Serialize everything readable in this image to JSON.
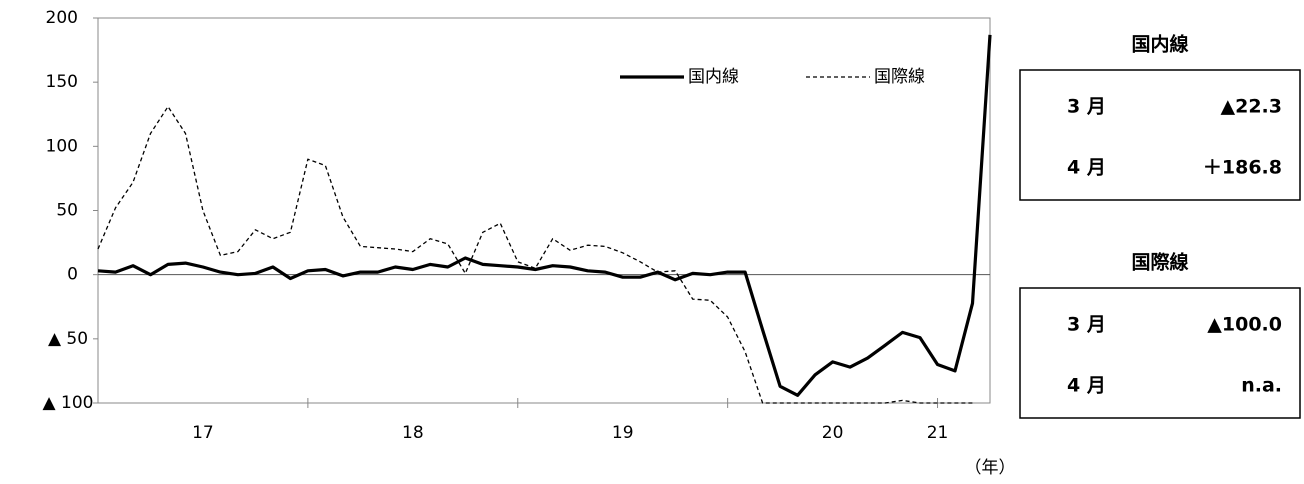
{
  "chart_data": {
    "type": "line",
    "categories": [
      null,
      null,
      null,
      null,
      null,
      null,
      "17",
      null,
      null,
      null,
      null,
      null,
      null,
      null,
      null,
      null,
      null,
      null,
      "18",
      null,
      null,
      null,
      null,
      null,
      null,
      null,
      null,
      null,
      null,
      null,
      "19",
      null,
      null,
      null,
      null,
      null,
      null,
      null,
      null,
      null,
      null,
      null,
      "20",
      null,
      null,
      null,
      null,
      null,
      "21",
      null,
      null,
      null
    ],
    "x_unit_label": "（年）",
    "series": [
      {
        "name": "国内線",
        "color": "#000000",
        "dash": false,
        "values": [
          3,
          2,
          7,
          0,
          8,
          9,
          6,
          2,
          0,
          1,
          6,
          -3,
          3,
          4,
          -1,
          2,
          2,
          6,
          4,
          8,
          6,
          13,
          8,
          7,
          6,
          4,
          7,
          6,
          3,
          2,
          -2,
          -2,
          2,
          -4,
          1,
          0,
          2,
          2,
          -43,
          -87,
          -94,
          -78,
          -68,
          -72,
          -65,
          -55,
          -45,
          -49,
          -70,
          -75,
          -22.3,
          186.8
        ]
      },
      {
        "name": "国際線",
        "color": "#000000",
        "dash": true,
        "values": [
          20,
          52,
          72,
          110,
          131,
          110,
          50,
          15,
          18,
          35,
          28,
          33,
          90,
          85,
          45,
          22,
          21,
          20,
          18,
          28,
          24,
          1,
          33,
          40,
          10,
          5,
          28,
          19,
          23,
          22,
          17,
          10,
          2,
          3,
          -19,
          -20,
          -33,
          -60,
          -100,
          -100,
          -100,
          -100,
          -100,
          -100,
          -100,
          -100,
          -98,
          -100,
          -100,
          -100,
          -100,
          null
        ]
      }
    ],
    "ylim": [
      -100,
      200
    ],
    "yticks": [
      {
        "value": -100,
        "label": "▲ 100"
      },
      {
        "value": -50,
        "label": "▲ 50"
      },
      0,
      50,
      100,
      150,
      200
    ],
    "legend": "upper right"
  },
  "panels": [
    {
      "title": "国内線",
      "rows": [
        {
          "month": "3 月",
          "value": "▲22.3"
        },
        {
          "month": "4 月",
          "value": "＋186.8"
        }
      ]
    },
    {
      "title": "国際線",
      "rows": [
        {
          "month": "3 月",
          "value": "▲100.0"
        },
        {
          "month": "4 月",
          "value": "n.a."
        }
      ]
    }
  ]
}
